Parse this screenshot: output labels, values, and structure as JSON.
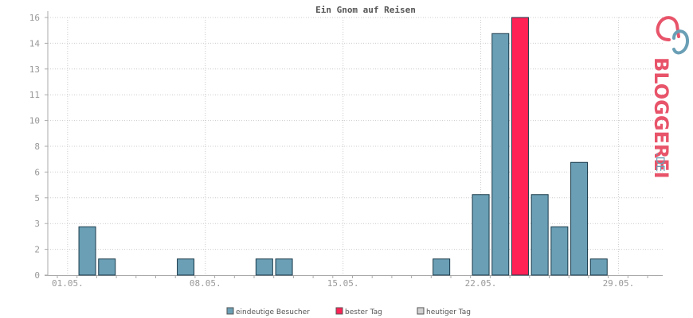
{
  "chart_data": {
    "type": "bar",
    "title": "Ein Gnom auf Reisen",
    "categories": [
      "01.05.",
      "02.05.",
      "03.05.",
      "04.05.",
      "05.05.",
      "06.05.",
      "07.05.",
      "08.05.",
      "09.05.",
      "10.05.",
      "11.05.",
      "12.05.",
      "13.05.",
      "14.05.",
      "15.05.",
      "16.05.",
      "17.05.",
      "18.05.",
      "19.05.",
      "20.05.",
      "21.05.",
      "22.05.",
      "23.05.",
      "24.05.",
      "25.05.",
      "26.05.",
      "27.05.",
      "28.05.",
      "29.05.",
      "30.05.",
      "31.05."
    ],
    "x_tick_labels": [
      "01.05.",
      "08.05.",
      "15.05.",
      "22.05.",
      "29.05."
    ],
    "y_tick_labels": [
      "0",
      "2",
      "3",
      "5",
      "6",
      "8",
      "10",
      "11",
      "13",
      "14",
      "16"
    ],
    "series": [
      {
        "name": "eindeutige Besucher",
        "color": "#6a9fb5",
        "values": [
          0,
          3,
          1,
          0,
          0,
          0,
          1,
          0,
          0,
          0,
          1,
          1,
          0,
          0,
          0,
          0,
          0,
          0,
          0,
          1,
          0,
          5,
          15,
          0,
          5,
          3,
          7,
          1,
          0,
          0,
          0
        ]
      },
      {
        "name": "bester Tag",
        "color": "#ff2255",
        "values": [
          0,
          0,
          0,
          0,
          0,
          0,
          0,
          0,
          0,
          0,
          0,
          0,
          0,
          0,
          0,
          0,
          0,
          0,
          0,
          0,
          0,
          0,
          0,
          16,
          0,
          0,
          0,
          0,
          0,
          0,
          0
        ]
      },
      {
        "name": "heutiger Tag",
        "color": "#d0d0d0",
        "values": [
          0,
          0,
          0,
          0,
          0,
          0,
          0,
          0,
          0,
          0,
          0,
          0,
          0,
          0,
          0,
          0,
          0,
          0,
          0,
          0,
          0,
          0,
          0,
          0,
          0,
          0,
          0,
          0,
          0,
          0,
          0
        ]
      }
    ],
    "ylim": [
      0,
      16
    ],
    "grid": true,
    "legend_position": "bottom-center"
  },
  "watermark": {
    "text_main": "BLOGGEREI",
    "text_suffix": ".DE",
    "colors": {
      "red": "#e8546a",
      "blue": "#6a9fb5"
    }
  }
}
